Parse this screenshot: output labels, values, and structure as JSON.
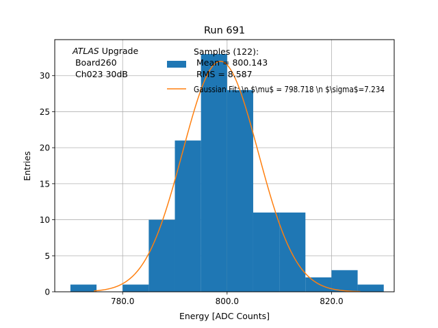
{
  "chart_data": {
    "type": "bar",
    "title": "Run 691",
    "xlabel": "Energy [ADC Counts]",
    "ylabel": "Entries",
    "xlim": [
      767.0,
      832.0
    ],
    "ylim": [
      0,
      35
    ],
    "grid": true,
    "legend_position": "top-right",
    "x_ticks": [
      780.0,
      800.0,
      820.0
    ],
    "x_tick_labels": [
      "780.0",
      "800.0",
      "820.0"
    ],
    "y_ticks": [
      0,
      5,
      10,
      15,
      20,
      25,
      30
    ],
    "y_tick_labels": [
      "0",
      "5",
      "10",
      "15",
      "20",
      "25",
      "30"
    ],
    "histogram": {
      "bin_edges": [
        770,
        775,
        780,
        785,
        790,
        795,
        800,
        805,
        810,
        815,
        820,
        825,
        830
      ],
      "counts": [
        1,
        0,
        1,
        10,
        21,
        33,
        28,
        11,
        11,
        2,
        3,
        1
      ],
      "color": "#1f77b4"
    },
    "fit": {
      "mu": 798.718,
      "sigma": 7.234,
      "amplitude": 32,
      "x_range": [
        774.5,
        825.5
      ],
      "color": "#ff7f0e"
    },
    "legend": {
      "hist_lines": [
        "Samples (122):",
        " Mean = 800.143",
        " RMS = 8.587"
      ],
      "fit_label": "Gaussian Fit: \\n $\\mu$ = 798.718 \\n $\\sigma$=7.234"
    },
    "annotation": {
      "line1_italic": "ATLAS",
      "line1_rest": " Upgrade",
      "line2": " Board260",
      "line3": " Ch023 30dB"
    }
  }
}
